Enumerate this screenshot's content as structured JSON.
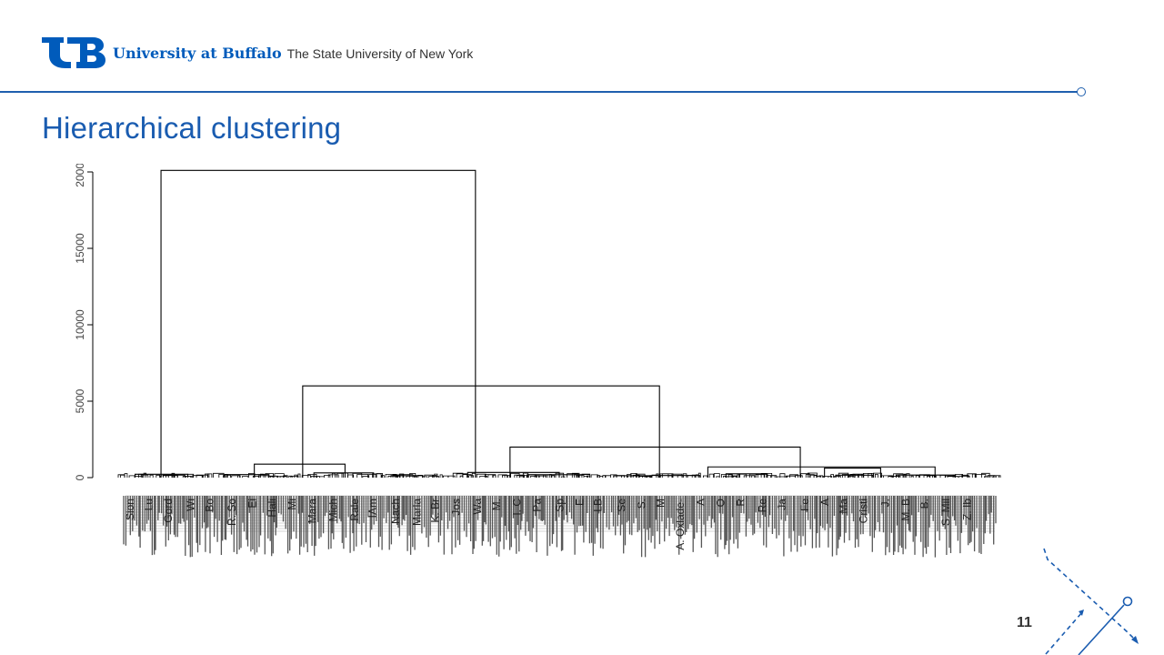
{
  "header": {
    "institution": "University at Buffalo",
    "affiliation": "The State University of New York"
  },
  "slide": {
    "title": "Hierarchical clustering",
    "page_number": "11"
  },
  "colors": {
    "brand_blue": "#005bbb",
    "title_blue": "#1a5cb0",
    "ink": "#000000"
  },
  "icons": [
    "ub-logo-icon",
    "decorative-arrows-icon"
  ],
  "chart_data": {
    "type": "dendrogram",
    "title": "",
    "xlabel": "",
    "ylabel": "",
    "ylim": [
      0,
      20000
    ],
    "y_ticks": [
      0,
      5000,
      10000,
      15000,
      20000
    ],
    "leaf_order_positions": [
      0,
      100
    ],
    "merges": [
      {
        "name": "root",
        "height": 20100,
        "left": 3.9,
        "right": 40.3
      },
      {
        "name": "c2",
        "height": 6000,
        "left": 20.3,
        "right": 61.6
      },
      {
        "name": "c3",
        "height": 2000,
        "left": 44.3,
        "right": 77.9
      },
      {
        "name": "c4",
        "height": 700,
        "left": 67.2,
        "right": 93.5
      },
      {
        "name": "c5",
        "height": 880,
        "left": 14.7,
        "right": 25.2
      },
      {
        "name": "c6",
        "height": 620,
        "left": 80.7,
        "right": 87.2
      },
      {
        "name": "c7",
        "height": 340,
        "left": 39.4,
        "right": 50.0
      },
      {
        "name": "c8",
        "height": 310,
        "left": 21.6,
        "right": 28.5
      },
      {
        "name": "c9",
        "height": 250,
        "left": 69.3,
        "right": 74.0
      },
      {
        "name": "c10",
        "height": 220,
        "left": 0.9,
        "right": 7.0
      },
      {
        "name": "c11",
        "height": 200,
        "left": 11.3,
        "right": 16.4
      },
      {
        "name": "c12",
        "height": 190,
        "left": 46.3,
        "right": 52.0
      },
      {
        "name": "c13",
        "height": 170,
        "left": 89.0,
        "right": 95.8
      },
      {
        "name": "c14",
        "height": 160,
        "left": 82.0,
        "right": 86.3
      },
      {
        "name": "c15",
        "height": 140,
        "left": 61.7,
        "right": 66.3
      },
      {
        "name": "c16",
        "height": 130,
        "left": 31.3,
        "right": 34.2
      },
      {
        "name": "c17",
        "height": 120,
        "left": 56.3,
        "right": 60.5
      }
    ],
    "leaf_labels_legible": [
      "Sion",
      "Lu",
      "Gord",
      "Wi",
      "Bo",
      "R. So",
      "Ei",
      "Hali",
      "Mi",
      "Mara",
      "Mich",
      "Rale",
      "IAm",
      "Nach",
      "Marla",
      "K. Br",
      "Jos",
      "Wa",
      "M.",
      "I. C",
      "Pa",
      "Sp",
      "E",
      "LB",
      "Se",
      "S.",
      "M",
      "A. Oxlade-",
      "A",
      "O",
      "R",
      "Re",
      "Ja",
      "Fe",
      "A",
      "Ma",
      "Cristi",
      "J.",
      "M. B",
      "B.",
      "S. Mil",
      "Z. Ib"
    ]
  }
}
